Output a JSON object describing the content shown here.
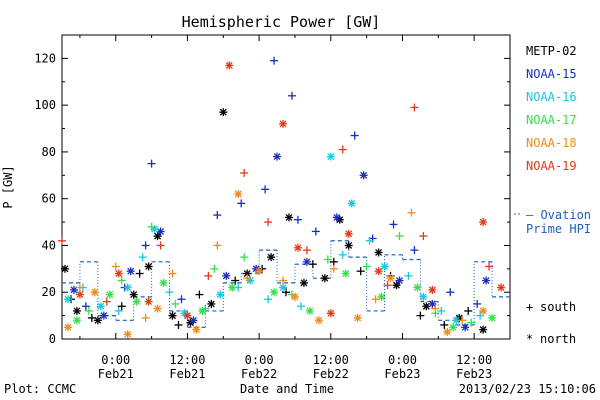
{
  "chart_data": {
    "type": "scatter",
    "title": "Hemispheric Power [GW]",
    "ylabel": "P [GW]",
    "xlabel": "Date and Time",
    "ylim": [
      0,
      130
    ],
    "yticks": [
      0,
      20,
      40,
      60,
      80,
      100,
      120
    ],
    "xlim": [
      "2013-02-20T15:00",
      "2013-02-23T18:00"
    ],
    "xticks": [
      {
        "x": "2013-02-21T00:00",
        "time": "0:00",
        "date": "Feb21"
      },
      {
        "x": "2013-02-21T12:00",
        "time": "12:00",
        "date": "Feb21"
      },
      {
        "x": "2013-02-22T00:00",
        "time": "0:00",
        "date": "Feb22"
      },
      {
        "x": "2013-02-22T12:00",
        "time": "12:00",
        "date": "Feb22"
      },
      {
        "x": "2013-02-23T00:00",
        "time": "0:00",
        "date": "Feb23"
      },
      {
        "x": "2013-02-23T12:00",
        "time": "12:00",
        "date": "Feb23"
      }
    ],
    "grid": false,
    "legend_position": "right",
    "hemisphere_legend": {
      "south_symbol": "+",
      "south": "south",
      "north_symbol": "*",
      "north": "north"
    },
    "ovation_label_line1": "— Ovation",
    "ovation_label_line2": "Prime HPI",
    "ovation_color": "#1f5fbf",
    "ovation_series": [
      {
        "x": "2013-02-20T15:00",
        "y": 24
      },
      {
        "x": "2013-02-20T18:00",
        "y": 33
      },
      {
        "x": "2013-02-20T21:00",
        "y": 10
      },
      {
        "x": "2013-02-21T00:00",
        "y": 8
      },
      {
        "x": "2013-02-21T03:00",
        "y": 18
      },
      {
        "x": "2013-02-21T06:00",
        "y": 33
      },
      {
        "x": "2013-02-21T09:00",
        "y": 12
      },
      {
        "x": "2013-02-21T12:00",
        "y": 5
      },
      {
        "x": "2013-02-21T15:00",
        "y": 12
      },
      {
        "x": "2013-02-21T18:00",
        "y": 24
      },
      {
        "x": "2013-02-21T21:00",
        "y": 28
      },
      {
        "x": "2013-02-22T00:00",
        "y": 38
      },
      {
        "x": "2013-02-22T03:00",
        "y": 24
      },
      {
        "x": "2013-02-22T06:00",
        "y": 32
      },
      {
        "x": "2013-02-22T09:00",
        "y": 26
      },
      {
        "x": "2013-02-22T12:00",
        "y": 42
      },
      {
        "x": "2013-02-22T15:00",
        "y": 35
      },
      {
        "x": "2013-02-22T18:00",
        "y": 12
      },
      {
        "x": "2013-02-22T21:00",
        "y": 36
      },
      {
        "x": "2013-02-23T00:00",
        "y": 34
      },
      {
        "x": "2013-02-23T03:00",
        "y": 16
      },
      {
        "x": "2013-02-23T06:00",
        "y": 8
      },
      {
        "x": "2013-02-23T09:00",
        "y": 6
      },
      {
        "x": "2013-02-23T12:00",
        "y": 33
      },
      {
        "x": "2013-02-23T15:00",
        "y": 18
      }
    ],
    "series": [
      {
        "name": "METP-02",
        "color": "#000000",
        "north": [
          {
            "x": "2013-02-20T15:30",
            "y": 30
          },
          {
            "x": "2013-02-20T17:30",
            "y": 12
          },
          {
            "x": "2013-02-20T21:00",
            "y": 8
          },
          {
            "x": "2013-02-21T03:00",
            "y": 19
          },
          {
            "x": "2013-02-21T05:30",
            "y": 31
          },
          {
            "x": "2013-02-21T07:00",
            "y": 44
          },
          {
            "x": "2013-02-21T09:30",
            "y": 10
          },
          {
            "x": "2013-02-21T12:30",
            "y": 7
          },
          {
            "x": "2013-02-21T16:00",
            "y": 15
          },
          {
            "x": "2013-02-21T18:00",
            "y": 97
          },
          {
            "x": "2013-02-21T22:00",
            "y": 28
          },
          {
            "x": "2013-02-22T02:00",
            "y": 35
          },
          {
            "x": "2013-02-22T05:00",
            "y": 52
          },
          {
            "x": "2013-02-22T07:30",
            "y": 24
          },
          {
            "x": "2013-02-22T11:00",
            "y": 26
          },
          {
            "x": "2013-02-22T13:30",
            "y": 51
          },
          {
            "x": "2013-02-22T15:00",
            "y": 40
          },
          {
            "x": "2013-02-22T20:00",
            "y": 37
          },
          {
            "x": "2013-02-22T23:00",
            "y": 23
          },
          {
            "x": "2013-02-23T04:00",
            "y": 14
          },
          {
            "x": "2013-02-23T09:30",
            "y": 9
          },
          {
            "x": "2013-02-23T13:30",
            "y": 4
          }
        ],
        "south": [
          {
            "x": "2013-02-20T16:30",
            "y": 17
          },
          {
            "x": "2013-02-20T20:00",
            "y": 9
          },
          {
            "x": "2013-02-21T01:00",
            "y": 14
          },
          {
            "x": "2013-02-21T04:00",
            "y": 28
          },
          {
            "x": "2013-02-21T10:30",
            "y": 6
          },
          {
            "x": "2013-02-21T14:00",
            "y": 19
          },
          {
            "x": "2013-02-21T20:00",
            "y": 25
          },
          {
            "x": "2013-02-22T00:30",
            "y": 30
          },
          {
            "x": "2013-02-22T04:30",
            "y": 20
          },
          {
            "x": "2013-02-22T09:00",
            "y": 32
          },
          {
            "x": "2013-02-22T12:30",
            "y": 33
          },
          {
            "x": "2013-02-22T17:00",
            "y": 29
          },
          {
            "x": "2013-02-22T22:00",
            "y": 27
          },
          {
            "x": "2013-02-23T03:00",
            "y": 10
          },
          {
            "x": "2013-02-23T07:00",
            "y": 6
          },
          {
            "x": "2013-02-23T11:00",
            "y": 12
          }
        ]
      },
      {
        "name": "NOAA-15",
        "color": "#1a2fbf",
        "north": [
          {
            "x": "2013-02-20T17:00",
            "y": 21
          },
          {
            "x": "2013-02-20T22:00",
            "y": 10
          },
          {
            "x": "2013-02-21T02:30",
            "y": 29
          },
          {
            "x": "2013-02-21T07:30",
            "y": 46
          },
          {
            "x": "2013-02-21T13:00",
            "y": 8
          },
          {
            "x": "2013-02-21T18:30",
            "y": 27
          },
          {
            "x": "2013-02-21T23:30",
            "y": 30
          },
          {
            "x": "2013-02-22T03:00",
            "y": 78
          },
          {
            "x": "2013-02-22T08:00",
            "y": 33
          },
          {
            "x": "2013-02-22T13:00",
            "y": 52
          },
          {
            "x": "2013-02-22T17:30",
            "y": 70
          },
          {
            "x": "2013-02-22T23:30",
            "y": 25
          },
          {
            "x": "2013-02-23T05:00",
            "y": 15
          },
          {
            "x": "2013-02-23T10:30",
            "y": 5
          },
          {
            "x": "2013-02-23T14:00",
            "y": 25
          }
        ],
        "south": [
          {
            "x": "2013-02-20T19:00",
            "y": 14
          },
          {
            "x": "2013-02-21T01:30",
            "y": 22
          },
          {
            "x": "2013-02-21T05:00",
            "y": 40
          },
          {
            "x": "2013-02-21T06:00",
            "y": 75
          },
          {
            "x": "2013-02-21T11:00",
            "y": 17
          },
          {
            "x": "2013-02-21T17:00",
            "y": 53
          },
          {
            "x": "2013-02-21T21:00",
            "y": 58
          },
          {
            "x": "2013-02-22T01:00",
            "y": 64
          },
          {
            "x": "2013-02-22T02:30",
            "y": 119
          },
          {
            "x": "2013-02-22T05:30",
            "y": 104
          },
          {
            "x": "2013-02-22T06:30",
            "y": 51
          },
          {
            "x": "2013-02-22T09:30",
            "y": 46
          },
          {
            "x": "2013-02-22T16:00",
            "y": 87
          },
          {
            "x": "2013-02-22T19:00",
            "y": 43
          },
          {
            "x": "2013-02-22T22:30",
            "y": 49
          },
          {
            "x": "2013-02-23T02:00",
            "y": 38
          },
          {
            "x": "2013-02-23T08:00",
            "y": 20
          },
          {
            "x": "2013-02-23T12:30",
            "y": 15
          }
        ]
      },
      {
        "name": "NOAA-16",
        "color": "#18c8e0",
        "north": [
          {
            "x": "2013-02-20T16:00",
            "y": 17
          },
          {
            "x": "2013-02-20T21:30",
            "y": 14
          },
          {
            "x": "2013-02-21T02:00",
            "y": 22
          },
          {
            "x": "2013-02-21T06:30",
            "y": 47
          },
          {
            "x": "2013-02-21T11:30",
            "y": 11
          },
          {
            "x": "2013-02-21T17:30",
            "y": 19
          },
          {
            "x": "2013-02-21T22:30",
            "y": 25
          },
          {
            "x": "2013-02-22T04:00",
            "y": 22
          },
          {
            "x": "2013-02-22T12:00",
            "y": 78
          },
          {
            "x": "2013-02-22T15:30",
            "y": 58
          },
          {
            "x": "2013-02-22T21:00",
            "y": 31
          },
          {
            "x": "2013-02-23T03:30",
            "y": 18
          },
          {
            "x": "2013-02-23T09:00",
            "y": 8
          }
        ],
        "south": [
          {
            "x": "2013-02-20T18:30",
            "y": 22
          },
          {
            "x": "2013-02-21T00:30",
            "y": 12
          },
          {
            "x": "2013-02-21T04:30",
            "y": 35
          },
          {
            "x": "2013-02-21T09:00",
            "y": 20
          },
          {
            "x": "2013-02-21T15:00",
            "y": 13
          },
          {
            "x": "2013-02-21T20:30",
            "y": 22
          },
          {
            "x": "2013-02-22T01:30",
            "y": 17
          },
          {
            "x": "2013-02-22T07:00",
            "y": 14
          },
          {
            "x": "2013-02-22T14:00",
            "y": 36
          },
          {
            "x": "2013-02-22T18:30",
            "y": 42
          },
          {
            "x": "2013-02-23T01:00",
            "y": 27
          },
          {
            "x": "2013-02-23T06:30",
            "y": 12
          },
          {
            "x": "2013-02-23T13:00",
            "y": 10
          }
        ]
      },
      {
        "name": "NOAA-17",
        "color": "#33e04a",
        "north": [
          {
            "x": "2013-02-20T17:30",
            "y": 8
          },
          {
            "x": "2013-02-20T23:00",
            "y": 19
          },
          {
            "x": "2013-02-21T03:30",
            "y": 16
          },
          {
            "x": "2013-02-21T08:00",
            "y": 24
          },
          {
            "x": "2013-02-21T14:30",
            "y": 12
          },
          {
            "x": "2013-02-21T19:30",
            "y": 22
          },
          {
            "x": "2013-02-22T02:30",
            "y": 20
          },
          {
            "x": "2013-02-22T08:30",
            "y": 12
          },
          {
            "x": "2013-02-22T14:30",
            "y": 28
          },
          {
            "x": "2013-02-22T20:30",
            "y": 18
          },
          {
            "x": "2013-02-23T02:30",
            "y": 22
          },
          {
            "x": "2013-02-23T08:30",
            "y": 5
          },
          {
            "x": "2013-02-23T15:00",
            "y": 9
          }
        ],
        "south": [
          {
            "x": "2013-02-20T19:30",
            "y": 12
          },
          {
            "x": "2013-02-21T01:00",
            "y": 25
          },
          {
            "x": "2013-02-21T06:00",
            "y": 48
          },
          {
            "x": "2013-02-21T10:00",
            "y": 15
          },
          {
            "x": "2013-02-21T16:30",
            "y": 30
          },
          {
            "x": "2013-02-21T21:30",
            "y": 35
          },
          {
            "x": "2013-02-22T05:30",
            "y": 19
          },
          {
            "x": "2013-02-22T11:30",
            "y": 34
          },
          {
            "x": "2013-02-22T18:00",
            "y": 31
          },
          {
            "x": "2013-02-22T23:30",
            "y": 44
          },
          {
            "x": "2013-02-23T05:30",
            "y": 11
          },
          {
            "x": "2013-02-23T11:30",
            "y": 7
          }
        ]
      },
      {
        "name": "NOAA-18",
        "color": "#f08a1c",
        "north": [
          {
            "x": "2013-02-20T16:00",
            "y": 5
          },
          {
            "x": "2013-02-20T20:30",
            "y": 20
          },
          {
            "x": "2013-02-21T02:00",
            "y": 2
          },
          {
            "x": "2013-02-21T07:00",
            "y": 13
          },
          {
            "x": "2013-02-21T13:30",
            "y": 4
          },
          {
            "x": "2013-02-21T20:30",
            "y": 62
          },
          {
            "x": "2013-02-22T00:00",
            "y": 29
          },
          {
            "x": "2013-02-22T06:00",
            "y": 18
          },
          {
            "x": "2013-02-22T10:00",
            "y": 8
          },
          {
            "x": "2013-02-22T16:30",
            "y": 9
          },
          {
            "x": "2013-02-22T22:00",
            "y": 26
          },
          {
            "x": "2013-02-23T07:30",
            "y": 3
          },
          {
            "x": "2013-02-23T13:30",
            "y": 12
          }
        ],
        "south": [
          {
            "x": "2013-02-20T18:00",
            "y": 22
          },
          {
            "x": "2013-02-21T00:00",
            "y": 31
          },
          {
            "x": "2013-02-21T05:00",
            "y": 9
          },
          {
            "x": "2013-02-21T09:30",
            "y": 28
          },
          {
            "x": "2013-02-21T17:00",
            "y": 40
          },
          {
            "x": "2013-02-21T22:00",
            "y": 26
          },
          {
            "x": "2013-02-22T04:00",
            "y": 25
          },
          {
            "x": "2013-02-22T12:30",
            "y": 30
          },
          {
            "x": "2013-02-22T19:30",
            "y": 17
          },
          {
            "x": "2013-02-23T01:30",
            "y": 54
          },
          {
            "x": "2013-02-23T05:30",
            "y": 13
          },
          {
            "x": "2013-02-23T10:00",
            "y": 8
          }
        ]
      },
      {
        "name": "NOAA-19",
        "color": "#e03a1a",
        "north": [
          {
            "x": "2013-02-20T18:00",
            "y": 19
          },
          {
            "x": "2013-02-21T00:30",
            "y": 28
          },
          {
            "x": "2013-02-21T05:30",
            "y": 16
          },
          {
            "x": "2013-02-21T12:00",
            "y": 10
          },
          {
            "x": "2013-02-21T19:00",
            "y": 117
          },
          {
            "x": "2013-02-22T04:00",
            "y": 92
          },
          {
            "x": "2013-02-22T06:30",
            "y": 39
          },
          {
            "x": "2013-02-22T12:00",
            "y": 11
          },
          {
            "x": "2013-02-22T15:00",
            "y": 45
          },
          {
            "x": "2013-02-22T20:00",
            "y": 29
          },
          {
            "x": "2013-02-23T05:00",
            "y": 21
          },
          {
            "x": "2013-02-23T13:30",
            "y": 50
          },
          {
            "x": "2013-02-23T16:30",
            "y": 22
          }
        ],
        "south": [
          {
            "x": "2013-02-20T15:00",
            "y": 42
          },
          {
            "x": "2013-02-20T22:30",
            "y": 16
          },
          {
            "x": "2013-02-21T07:30",
            "y": 40
          },
          {
            "x": "2013-02-21T15:30",
            "y": 27
          },
          {
            "x": "2013-02-21T21:30",
            "y": 71
          },
          {
            "x": "2013-02-22T01:30",
            "y": 50
          },
          {
            "x": "2013-02-22T08:00",
            "y": 38
          },
          {
            "x": "2013-02-22T14:00",
            "y": 81
          },
          {
            "x": "2013-02-22T21:30",
            "y": 23
          },
          {
            "x": "2013-02-23T02:00",
            "y": 99
          },
          {
            "x": "2013-02-23T03:30",
            "y": 44
          },
          {
            "x": "2013-02-23T14:30",
            "y": 31
          }
        ]
      }
    ]
  },
  "footer": {
    "plot_label": "Plot: CCMC",
    "timestamp": "2013/02/23 15:10:06"
  }
}
